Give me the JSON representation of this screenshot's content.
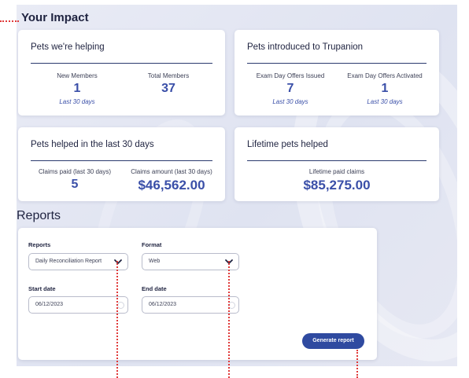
{
  "impact": {
    "title": "Your Impact",
    "pets_helping": {
      "title": "Pets we're helping",
      "new_members_label": "New Members",
      "new_members_value": "1",
      "new_members_period": "Last 30 days",
      "total_members_label": "Total Members",
      "total_members_value": "37"
    },
    "pets_introduced": {
      "title": "Pets introduced to Trupanion",
      "issued_label": "Exam Day Offers Issued",
      "issued_value": "7",
      "issued_period": "Last 30 days",
      "activated_label": "Exam Day Offers Activated",
      "activated_value": "1",
      "activated_period": "Last 30 days"
    },
    "pets_helped_30": {
      "title": "Pets helped in the last 30 days",
      "claims_paid_label": "Claims paid (last 30 days)",
      "claims_paid_value": "5",
      "claims_amount_label": "Claims amount (last 30 days)",
      "claims_amount_value": "$46,562.00"
    },
    "lifetime": {
      "title": "Lifetime pets helped",
      "claims_label": "Lifetime paid claims",
      "claims_value": "$85,275.00"
    }
  },
  "reports": {
    "title": "Reports",
    "report_label": "Reports",
    "report_value": "Daily Reconciliation Report",
    "format_label": "Format",
    "format_value": "Web",
    "start_label": "Start date",
    "start_value": "06/12/2023",
    "end_label": "End date",
    "end_value": "06/12/2023",
    "generate_label": "Generate report"
  },
  "colors": {
    "accent": "#3a4fa8",
    "button": "#2f4aa0",
    "annotation": "#e03a3a"
  }
}
